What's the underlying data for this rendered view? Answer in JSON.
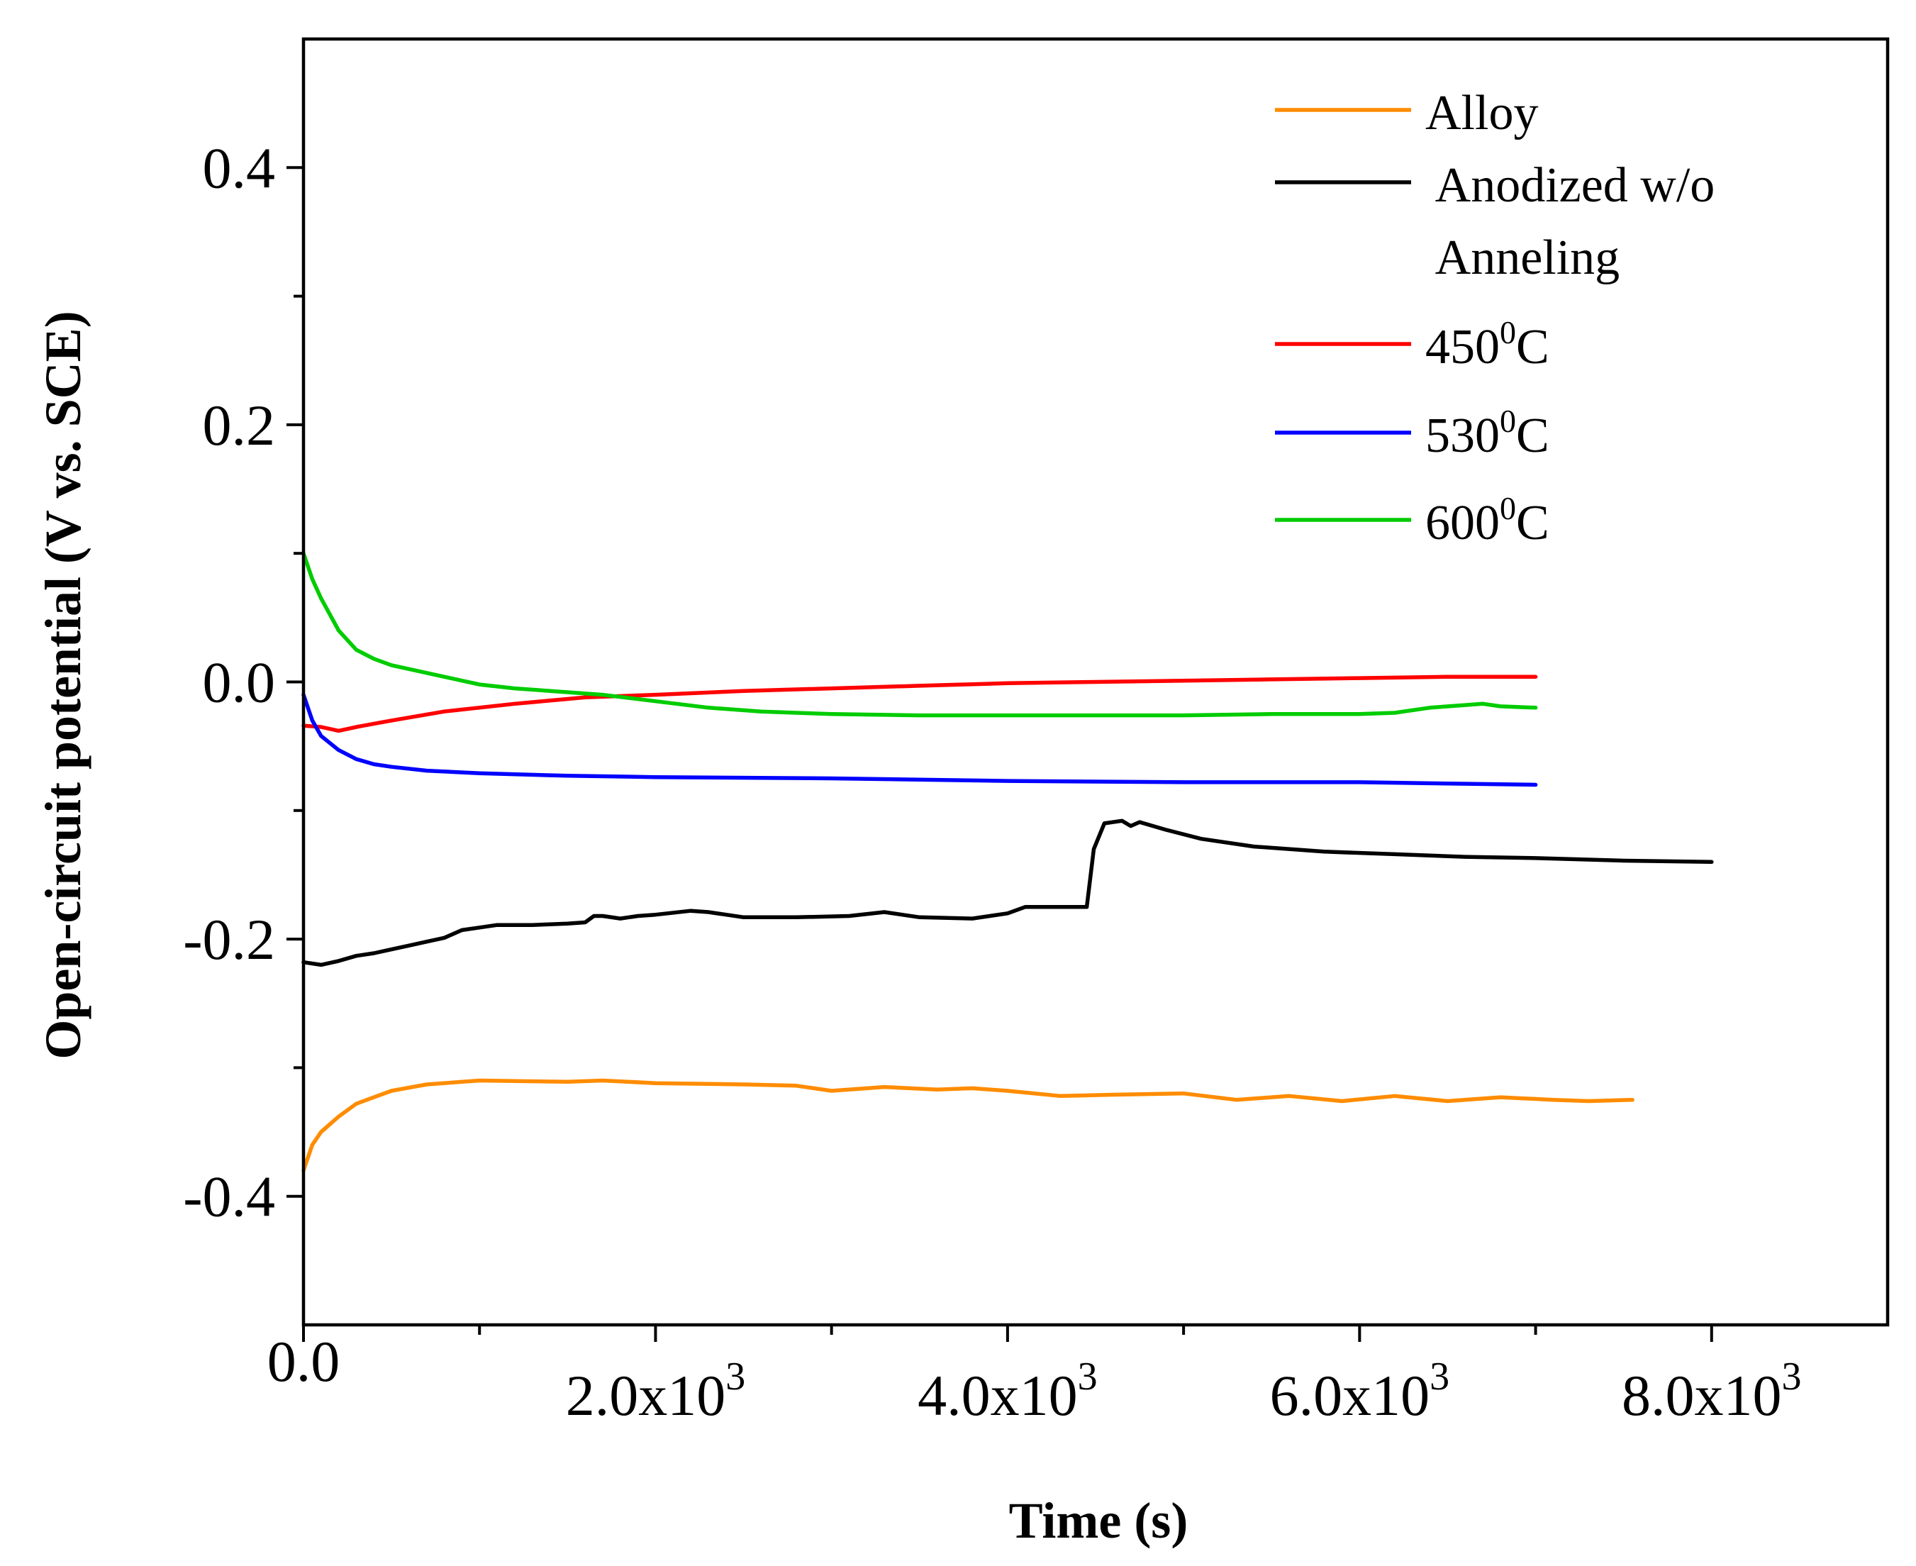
{
  "chart_data": {
    "type": "line",
    "xlabel": "Time (s)",
    "ylabel": "Open-circuit potential (V vs. SCE)",
    "xlim": [
      0,
      9000
    ],
    "ylim": [
      -0.5,
      0.5
    ],
    "x_ticks": [
      {
        "value": 0,
        "mantissa": "0.0",
        "exp": ""
      },
      {
        "value": 2000,
        "mantissa": "2.0x10",
        "exp": "3"
      },
      {
        "value": 4000,
        "mantissa": "4.0x10",
        "exp": "3"
      },
      {
        "value": 6000,
        "mantissa": "6.0x10",
        "exp": "3"
      },
      {
        "value": 8000,
        "mantissa": "8.0x10",
        "exp": "3"
      }
    ],
    "x_minor_ticks": [
      1000,
      3000,
      5000,
      7000
    ],
    "y_ticks": [
      {
        "value": 0.4,
        "label": "0.4"
      },
      {
        "value": 0.2,
        "label": "0.2"
      },
      {
        "value": 0.0,
        "label": "0.0"
      },
      {
        "value": -0.2,
        "label": "-0.2"
      },
      {
        "value": -0.4,
        "label": "-0.4"
      }
    ],
    "y_minor_ticks": [
      0.3,
      0.1,
      -0.1,
      -0.3
    ],
    "legend_position": "top-right",
    "series": [
      {
        "name": "Alloy",
        "legend": [
          "Alloy"
        ],
        "sup": "",
        "color": "#ff8c00",
        "points": [
          [
            0,
            -0.38
          ],
          [
            50,
            -0.36
          ],
          [
            100,
            -0.35
          ],
          [
            200,
            -0.338
          ],
          [
            300,
            -0.328
          ],
          [
            400,
            -0.323
          ],
          [
            500,
            -0.318
          ],
          [
            700,
            -0.313
          ],
          [
            1000,
            -0.31
          ],
          [
            1500,
            -0.311
          ],
          [
            1700,
            -0.31
          ],
          [
            2000,
            -0.312
          ],
          [
            2500,
            -0.313
          ],
          [
            2800,
            -0.314
          ],
          [
            3000,
            -0.318
          ],
          [
            3300,
            -0.315
          ],
          [
            3600,
            -0.317
          ],
          [
            3800,
            -0.316
          ],
          [
            4000,
            -0.318
          ],
          [
            4300,
            -0.322
          ],
          [
            4600,
            -0.321
          ],
          [
            5000,
            -0.32
          ],
          [
            5300,
            -0.325
          ],
          [
            5600,
            -0.322
          ],
          [
            5900,
            -0.326
          ],
          [
            6200,
            -0.322
          ],
          [
            6500,
            -0.326
          ],
          [
            6800,
            -0.323
          ],
          [
            7100,
            -0.325
          ],
          [
            7300,
            -0.326
          ],
          [
            7550,
            -0.325
          ]
        ]
      },
      {
        "name": "Anodized w/o Anneling",
        "legend": [
          " Anodized w/o",
          " Anneling"
        ],
        "sup": "",
        "color": "#000000",
        "points": [
          [
            0,
            -0.218
          ],
          [
            100,
            -0.22
          ],
          [
            200,
            -0.217
          ],
          [
            300,
            -0.213
          ],
          [
            400,
            -0.211
          ],
          [
            500,
            -0.208
          ],
          [
            600,
            -0.205
          ],
          [
            700,
            -0.202
          ],
          [
            800,
            -0.199
          ],
          [
            900,
            -0.193
          ],
          [
            1000,
            -0.191
          ],
          [
            1100,
            -0.189
          ],
          [
            1300,
            -0.189
          ],
          [
            1500,
            -0.188
          ],
          [
            1600,
            -0.187
          ],
          [
            1650,
            -0.182
          ],
          [
            1700,
            -0.182
          ],
          [
            1800,
            -0.184
          ],
          [
            1900,
            -0.182
          ],
          [
            2000,
            -0.181
          ],
          [
            2200,
            -0.178
          ],
          [
            2300,
            -0.179
          ],
          [
            2500,
            -0.183
          ],
          [
            2800,
            -0.183
          ],
          [
            3100,
            -0.182
          ],
          [
            3300,
            -0.179
          ],
          [
            3500,
            -0.183
          ],
          [
            3800,
            -0.184
          ],
          [
            4000,
            -0.18
          ],
          [
            4100,
            -0.175
          ],
          [
            4300,
            -0.175
          ],
          [
            4450,
            -0.175
          ],
          [
            4490,
            -0.13
          ],
          [
            4550,
            -0.11
          ],
          [
            4650,
            -0.108
          ],
          [
            4700,
            -0.112
          ],
          [
            4750,
            -0.109
          ],
          [
            4900,
            -0.115
          ],
          [
            5100,
            -0.122
          ],
          [
            5400,
            -0.128
          ],
          [
            5800,
            -0.132
          ],
          [
            6200,
            -0.134
          ],
          [
            6600,
            -0.136
          ],
          [
            7000,
            -0.137
          ],
          [
            7500,
            -0.139
          ],
          [
            8000,
            -0.14
          ]
        ]
      },
      {
        "name": "450°C",
        "legend": [
          "450"
        ],
        "sup": "0",
        "color": "#ff0000",
        "points": [
          [
            0,
            -0.034
          ],
          [
            100,
            -0.035
          ],
          [
            200,
            -0.038
          ],
          [
            300,
            -0.035
          ],
          [
            500,
            -0.03
          ],
          [
            800,
            -0.023
          ],
          [
            1200,
            -0.017
          ],
          [
            1600,
            -0.012
          ],
          [
            2000,
            -0.01
          ],
          [
            2500,
            -0.007
          ],
          [
            3000,
            -0.005
          ],
          [
            3500,
            -0.003
          ],
          [
            4000,
            -0.001
          ],
          [
            4500,
            0.0
          ],
          [
            5000,
            0.001
          ],
          [
            5500,
            0.002
          ],
          [
            6000,
            0.003
          ],
          [
            6500,
            0.004
          ],
          [
            7000,
            0.004
          ]
        ]
      },
      {
        "name": "530°C",
        "legend": [
          "530"
        ],
        "sup": "0",
        "color": "#0000ff",
        "points": [
          [
            0,
            -0.01
          ],
          [
            50,
            -0.03
          ],
          [
            100,
            -0.042
          ],
          [
            200,
            -0.053
          ],
          [
            300,
            -0.06
          ],
          [
            400,
            -0.064
          ],
          [
            500,
            -0.066
          ],
          [
            700,
            -0.069
          ],
          [
            1000,
            -0.071
          ],
          [
            1500,
            -0.073
          ],
          [
            2000,
            -0.074
          ],
          [
            3000,
            -0.075
          ],
          [
            4000,
            -0.077
          ],
          [
            5000,
            -0.078
          ],
          [
            6000,
            -0.078
          ],
          [
            7000,
            -0.08
          ]
        ]
      },
      {
        "name": "600°C",
        "legend": [
          "600"
        ],
        "sup": "0",
        "color": "#00cc00",
        "points": [
          [
            0,
            0.1
          ],
          [
            50,
            0.08
          ],
          [
            100,
            0.065
          ],
          [
            200,
            0.04
          ],
          [
            300,
            0.025
          ],
          [
            400,
            0.018
          ],
          [
            500,
            0.013
          ],
          [
            700,
            0.007
          ],
          [
            900,
            0.001
          ],
          [
            1000,
            -0.002
          ],
          [
            1200,
            -0.005
          ],
          [
            1500,
            -0.008
          ],
          [
            1700,
            -0.01
          ],
          [
            2000,
            -0.015
          ],
          [
            2300,
            -0.02
          ],
          [
            2600,
            -0.023
          ],
          [
            3000,
            -0.025
          ],
          [
            3500,
            -0.026
          ],
          [
            4000,
            -0.026
          ],
          [
            4500,
            -0.026
          ],
          [
            5000,
            -0.026
          ],
          [
            5500,
            -0.025
          ],
          [
            6000,
            -0.025
          ],
          [
            6200,
            -0.024
          ],
          [
            6400,
            -0.02
          ],
          [
            6600,
            -0.018
          ],
          [
            6700,
            -0.017
          ],
          [
            6800,
            -0.019
          ],
          [
            7000,
            -0.02
          ]
        ]
      }
    ]
  }
}
